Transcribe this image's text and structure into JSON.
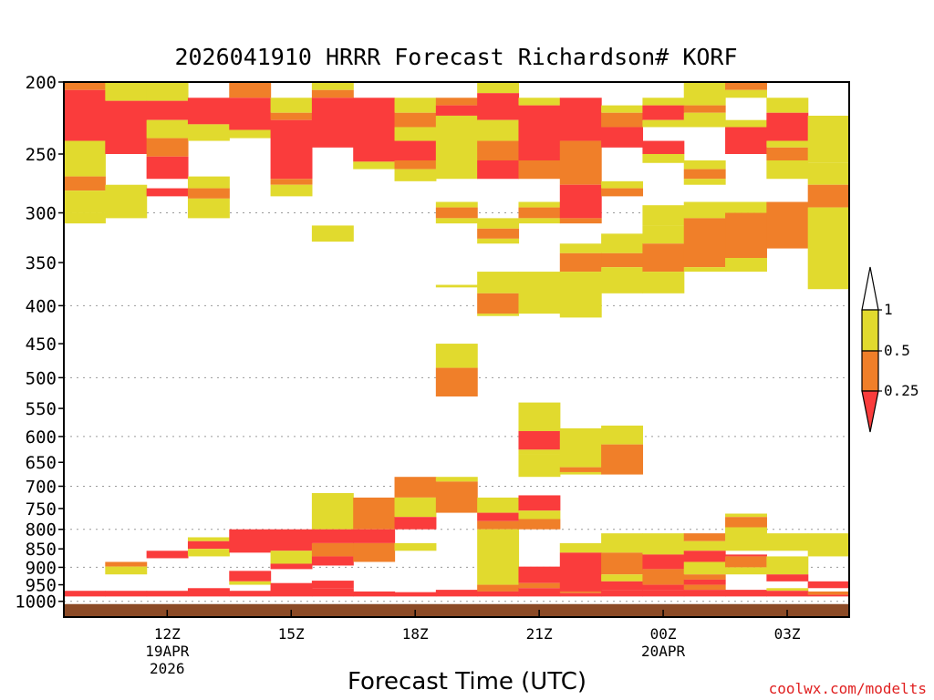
{
  "title": "2026041910 HRRR Forecast Richardson# KORF",
  "xlabel": "Forecast Time (UTC)",
  "credit": "coolwx.com/modelts",
  "chart_data": {
    "type": "heatmap",
    "title": "2026041910 HRRR Forecast Richardson# KORF",
    "xlabel": "Forecast Time (UTC)",
    "ylabel": "",
    "y_scale": "log",
    "ylim": [
      1050,
      200
    ],
    "y_ticks": [
      200,
      250,
      300,
      350,
      400,
      450,
      500,
      550,
      600,
      650,
      700,
      750,
      800,
      850,
      900,
      950,
      1000
    ],
    "dotted_gridlines": [
      300,
      400,
      500,
      600,
      700,
      800,
      900,
      1000
    ],
    "x_ticks": [
      {
        "hour": 2,
        "label": "12Z",
        "sub": [
          "19APR",
          "2026"
        ]
      },
      {
        "hour": 5,
        "label": "15Z",
        "sub": []
      },
      {
        "hour": 8,
        "label": "18Z",
        "sub": []
      },
      {
        "hour": 11,
        "label": "21Z",
        "sub": []
      },
      {
        "hour": 14,
        "label": "00Z",
        "sub": [
          "20APR"
        ]
      },
      {
        "hour": 17,
        "label": "03Z",
        "sub": []
      }
    ],
    "hours": [
      0,
      1,
      2,
      3,
      4,
      5,
      6,
      7,
      8,
      9,
      10,
      11,
      12,
      13,
      14,
      15,
      16,
      17,
      18
    ],
    "colors": {
      "y": "#e1da2e",
      "o": "#f07f29",
      "r": "#fa3c3c",
      "ground": "#8b4a26"
    },
    "colorbar": {
      "labels": [
        "1",
        "0.5",
        "0.25"
      ],
      "bands": [
        "#e1da2e",
        "#f07f29"
      ],
      "top_arrow": "#ffffff",
      "bottom_arrow": "#fa3c3c"
    },
    "ground_pressure": 1020,
    "columns": [
      [
        [
          200,
          205,
          "o"
        ],
        [
          205,
          240,
          "r"
        ],
        [
          240,
          268,
          "y"
        ],
        [
          268,
          280,
          "o"
        ],
        [
          280,
          300,
          "y"
        ],
        [
          300,
          310,
          "y"
        ],
        [
          968,
          985,
          "r"
        ]
      ],
      [
        [
          200,
          212,
          "y"
        ],
        [
          212,
          250,
          "r"
        ],
        [
          275,
          305,
          "y"
        ],
        [
          885,
          898,
          "o"
        ],
        [
          898,
          920,
          "y"
        ],
        [
          968,
          985,
          "r"
        ]
      ],
      [
        [
          200,
          212,
          "y"
        ],
        [
          212,
          225,
          "r"
        ],
        [
          225,
          238,
          "y"
        ],
        [
          238,
          252,
          "o"
        ],
        [
          252,
          270,
          "r"
        ],
        [
          278,
          285,
          "r"
        ],
        [
          855,
          875,
          "r"
        ],
        [
          968,
          985,
          "r"
        ]
      ],
      [
        [
          210,
          218,
          "r"
        ],
        [
          218,
          228,
          "r"
        ],
        [
          228,
          240,
          "y"
        ],
        [
          268,
          278,
          "y"
        ],
        [
          278,
          287,
          "o"
        ],
        [
          287,
          305,
          "y"
        ],
        [
          820,
          830,
          "y"
        ],
        [
          830,
          850,
          "r"
        ],
        [
          850,
          870,
          "y"
        ],
        [
          960,
          985,
          "r"
        ]
      ],
      [
        [
          200,
          210,
          "o"
        ],
        [
          210,
          232,
          "r"
        ],
        [
          232,
          238,
          "y"
        ],
        [
          800,
          860,
          "r"
        ],
        [
          910,
          940,
          "r"
        ],
        [
          940,
          950,
          "y"
        ],
        [
          968,
          985,
          "r"
        ]
      ],
      [
        [
          210,
          220,
          "y"
        ],
        [
          220,
          225,
          "o"
        ],
        [
          225,
          270,
          "r"
        ],
        [
          270,
          275,
          "o"
        ],
        [
          275,
          285,
          "y"
        ],
        [
          800,
          855,
          "r"
        ],
        [
          855,
          890,
          "y"
        ],
        [
          890,
          905,
          "r"
        ],
        [
          945,
          985,
          "r"
        ]
      ],
      [
        [
          200,
          205,
          "y"
        ],
        [
          205,
          210,
          "o"
        ],
        [
          210,
          245,
          "r"
        ],
        [
          312,
          328,
          "y"
        ],
        [
          715,
          800,
          "y"
        ],
        [
          800,
          835,
          "r"
        ],
        [
          835,
          870,
          "o"
        ],
        [
          870,
          895,
          "r"
        ],
        [
          938,
          960,
          "r"
        ],
        [
          960,
          985,
          "r"
        ]
      ],
      [
        [
          210,
          256,
          "r"
        ],
        [
          256,
          262,
          "y"
        ],
        [
          725,
          800,
          "o"
        ],
        [
          800,
          835,
          "r"
        ],
        [
          835,
          885,
          "o"
        ],
        [
          970,
          985,
          "r"
        ]
      ],
      [
        [
          210,
          220,
          "y"
        ],
        [
          220,
          230,
          "o"
        ],
        [
          230,
          240,
          "y"
        ],
        [
          240,
          255,
          "r"
        ],
        [
          255,
          262,
          "o"
        ],
        [
          262,
          272,
          "y"
        ],
        [
          680,
          725,
          "o"
        ],
        [
          725,
          770,
          "y"
        ],
        [
          770,
          800,
          "r"
        ],
        [
          835,
          855,
          "y"
        ],
        [
          972,
          985,
          "r"
        ]
      ],
      [
        [
          210,
          215,
          "o"
        ],
        [
          215,
          222,
          "r"
        ],
        [
          222,
          270,
          "y"
        ],
        [
          290,
          295,
          "y"
        ],
        [
          295,
          305,
          "o"
        ],
        [
          305,
          310,
          "y"
        ],
        [
          375,
          378,
          "y"
        ],
        [
          450,
          485,
          "y"
        ],
        [
          485,
          530,
          "o"
        ],
        [
          680,
          690,
          "y"
        ],
        [
          690,
          760,
          "o"
        ],
        [
          965,
          985,
          "r"
        ]
      ],
      [
        [
          200,
          207,
          "y"
        ],
        [
          207,
          225,
          "r"
        ],
        [
          225,
          240,
          "y"
        ],
        [
          240,
          255,
          "o"
        ],
        [
          255,
          270,
          "r"
        ],
        [
          305,
          315,
          "y"
        ],
        [
          315,
          325,
          "o"
        ],
        [
          325,
          330,
          "y"
        ],
        [
          360,
          385,
          "y"
        ],
        [
          385,
          410,
          "o"
        ],
        [
          410,
          413,
          "y"
        ],
        [
          725,
          760,
          "y"
        ],
        [
          760,
          780,
          "r"
        ],
        [
          780,
          800,
          "o"
        ],
        [
          800,
          950,
          "y"
        ],
        [
          950,
          970,
          "o"
        ],
        [
          970,
          985,
          "r"
        ]
      ],
      [
        [
          210,
          215,
          "y"
        ],
        [
          215,
          255,
          "r"
        ],
        [
          255,
          270,
          "o"
        ],
        [
          290,
          295,
          "y"
        ],
        [
          295,
          305,
          "o"
        ],
        [
          305,
          310,
          "y"
        ],
        [
          360,
          410,
          "y"
        ],
        [
          540,
          590,
          "y"
        ],
        [
          590,
          625,
          "r"
        ],
        [
          625,
          635,
          "y"
        ],
        [
          635,
          680,
          "y"
        ],
        [
          720,
          755,
          "r"
        ],
        [
          755,
          775,
          "y"
        ],
        [
          775,
          800,
          "o"
        ],
        [
          898,
          945,
          "r"
        ],
        [
          945,
          960,
          "o"
        ],
        [
          960,
          985,
          "r"
        ]
      ],
      [
        [
          210,
          240,
          "r"
        ],
        [
          240,
          275,
          "o"
        ],
        [
          275,
          305,
          "r"
        ],
        [
          305,
          310,
          "o"
        ],
        [
          330,
          340,
          "y"
        ],
        [
          340,
          360,
          "o"
        ],
        [
          360,
          415,
          "y"
        ],
        [
          585,
          660,
          "y"
        ],
        [
          660,
          670,
          "o"
        ],
        [
          670,
          675,
          "y"
        ],
        [
          835,
          860,
          "y"
        ],
        [
          860,
          970,
          "r"
        ],
        [
          970,
          975,
          "o"
        ],
        [
          975,
          985,
          "r"
        ]
      ],
      [
        [
          215,
          220,
          "y"
        ],
        [
          220,
          230,
          "o"
        ],
        [
          230,
          245,
          "r"
        ],
        [
          272,
          278,
          "y"
        ],
        [
          278,
          285,
          "o"
        ],
        [
          320,
          340,
          "y"
        ],
        [
          340,
          355,
          "o"
        ],
        [
          355,
          385,
          "y"
        ],
        [
          580,
          615,
          "y"
        ],
        [
          615,
          675,
          "o"
        ],
        [
          810,
          860,
          "y"
        ],
        [
          860,
          920,
          "o"
        ],
        [
          920,
          940,
          "y"
        ],
        [
          940,
          965,
          "r"
        ],
        [
          965,
          985,
          "r"
        ]
      ],
      [
        [
          210,
          215,
          "y"
        ],
        [
          215,
          225,
          "r"
        ],
        [
          225,
          230,
          "y"
        ],
        [
          240,
          250,
          "r"
        ],
        [
          250,
          257,
          "y"
        ],
        [
          293,
          312,
          "y"
        ],
        [
          312,
          330,
          "y"
        ],
        [
          330,
          360,
          "o"
        ],
        [
          360,
          385,
          "y"
        ],
        [
          810,
          865,
          "y"
        ],
        [
          865,
          905,
          "r"
        ],
        [
          905,
          950,
          "o"
        ],
        [
          950,
          965,
          "r"
        ],
        [
          965,
          985,
          "r"
        ]
      ],
      [
        [
          200,
          215,
          "y"
        ],
        [
          215,
          220,
          "o"
        ],
        [
          220,
          230,
          "y"
        ],
        [
          255,
          262,
          "y"
        ],
        [
          262,
          270,
          "o"
        ],
        [
          270,
          275,
          "y"
        ],
        [
          290,
          305,
          "y"
        ],
        [
          305,
          355,
          "o"
        ],
        [
          355,
          360,
          "y"
        ],
        [
          810,
          830,
          "o"
        ],
        [
          830,
          855,
          "y"
        ],
        [
          855,
          885,
          "r"
        ],
        [
          885,
          920,
          "y"
        ],
        [
          920,
          935,
          "o"
        ],
        [
          935,
          950,
          "r"
        ],
        [
          950,
          965,
          "o"
        ],
        [
          965,
          985,
          "r"
        ]
      ],
      [
        [
          200,
          205,
          "o"
        ],
        [
          205,
          210,
          "y"
        ],
        [
          225,
          230,
          "y"
        ],
        [
          230,
          250,
          "r"
        ],
        [
          290,
          300,
          "y"
        ],
        [
          300,
          345,
          "o"
        ],
        [
          345,
          360,
          "y"
        ],
        [
          762,
          770,
          "y"
        ],
        [
          770,
          795,
          "o"
        ],
        [
          795,
          855,
          "y"
        ],
        [
          865,
          870,
          "r"
        ],
        [
          870,
          900,
          "o"
        ],
        [
          900,
          920,
          "y"
        ],
        [
          965,
          985,
          "r"
        ]
      ],
      [
        [
          210,
          220,
          "y"
        ],
        [
          220,
          240,
          "r"
        ],
        [
          240,
          245,
          "y"
        ],
        [
          245,
          255,
          "o"
        ],
        [
          255,
          270,
          "y"
        ],
        [
          290,
          335,
          "o"
        ],
        [
          810,
          855,
          "y"
        ],
        [
          870,
          920,
          "y"
        ],
        [
          920,
          940,
          "r"
        ],
        [
          960,
          968,
          "y"
        ],
        [
          968,
          985,
          "r"
        ]
      ],
      [
        [
          222,
          257,
          "y"
        ],
        [
          257,
          275,
          "y"
        ],
        [
          275,
          295,
          "o"
        ],
        [
          295,
          380,
          "y"
        ],
        [
          810,
          870,
          "y"
        ],
        [
          940,
          960,
          "r"
        ],
        [
          970,
          980,
          "o"
        ],
        [
          980,
          985,
          "r"
        ]
      ]
    ]
  }
}
